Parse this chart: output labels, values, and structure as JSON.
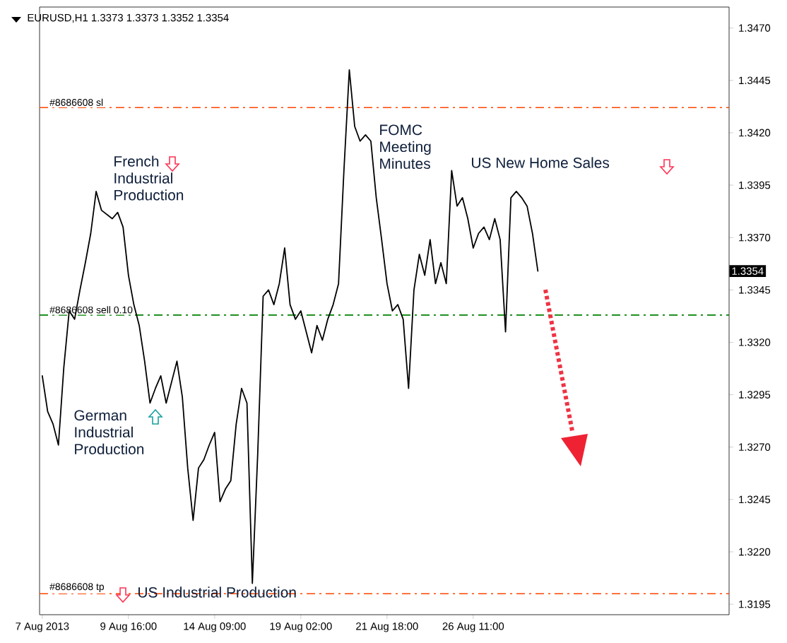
{
  "chart_data": {
    "type": "line",
    "title": "EURUSD,H1  1.3373 1.3373 1.3352 1.3354",
    "categories": [
      "7 Aug 2013",
      null,
      null,
      null,
      null,
      null,
      null,
      null,
      null,
      null,
      null,
      null,
      null,
      null,
      null,
      null,
      "9 Aug 16:00",
      null,
      null,
      null,
      null,
      null,
      null,
      null,
      null,
      null,
      null,
      null,
      null,
      null,
      null,
      null,
      "14 Aug 09:00",
      null,
      null,
      null,
      null,
      null,
      null,
      null,
      null,
      null,
      null,
      null,
      null,
      null,
      null,
      null,
      "19 Aug 02:00",
      null,
      null,
      null,
      null,
      null,
      null,
      null,
      null,
      null,
      null,
      null,
      null,
      null,
      null,
      null,
      "21 Aug 18:00",
      null,
      null,
      null,
      null,
      null,
      null,
      null,
      null,
      null,
      null,
      null,
      null,
      null,
      null,
      null,
      "26 Aug 11:00",
      null,
      null,
      null,
      null,
      null,
      null,
      null,
      null,
      null,
      null,
      null,
      null,
      null,
      null,
      null,
      null,
      null,
      null,
      null,
      null,
      null,
      null,
      null,
      null,
      null,
      null,
      null,
      null,
      null,
      null,
      null,
      null,
      null,
      null,
      null,
      null,
      null,
      null,
      null,
      null,
      null,
      null,
      null,
      null,
      null,
      null,
      null
    ],
    "series": [
      {
        "color": "#000000",
        "values": [
          1.3304,
          1.3287,
          1.3281,
          1.3271,
          1.3308,
          1.3335,
          1.3331,
          1.3345,
          1.3358,
          1.3372,
          1.3392,
          1.3383,
          1.3381,
          1.3379,
          1.3382,
          1.3375,
          1.3352,
          1.3338,
          1.3328,
          1.3311,
          1.3291,
          1.3298,
          1.3304,
          1.3291,
          1.3301,
          1.3311,
          1.3294,
          1.326,
          1.3235,
          1.326,
          1.3264,
          1.3271,
          1.3277,
          1.3244,
          1.325,
          1.3254,
          1.3281,
          1.3298,
          1.3291,
          1.3205,
          1.3267,
          1.3342,
          1.3345,
          1.3338,
          1.3348,
          1.3365,
          1.3338,
          1.3331,
          1.3335,
          1.3325,
          1.3315,
          1.3328,
          1.3321,
          1.3331,
          1.3338,
          1.3348,
          1.3402,
          1.345,
          1.3423,
          1.3416,
          1.3419,
          1.3416,
          1.3389,
          1.3369,
          1.3348,
          1.3335,
          1.3338,
          1.3331,
          1.3298,
          1.3345,
          1.3362,
          1.3352,
          1.3369,
          1.3348,
          1.3358,
          1.3348,
          1.3402,
          1.3385,
          1.3389,
          1.3379,
          1.3365,
          1.3372,
          1.3375,
          1.3369,
          1.3379,
          1.3369,
          1.3325,
          1.3389,
          1.3392,
          1.3389,
          1.3385,
          1.3372,
          1.3354,
          null,
          null,
          null,
          null,
          null,
          null,
          null,
          null,
          null,
          null,
          null,
          null,
          null,
          null,
          null,
          null,
          null,
          null,
          null,
          null,
          null,
          null,
          null,
          null,
          null,
          null,
          null,
          null,
          null,
          null,
          null,
          null,
          null,
          null,
          null
        ]
      }
    ],
    "ylim": [
      1.319,
      1.348
    ],
    "yticks": [
      1.3195,
      {
        "value": 1.322,
        "label": "1.3220"
      },
      1.3245,
      {
        "value": 1.327,
        "label": "1.3270"
      },
      1.3295,
      {
        "value": 1.332,
        "label": "1.3320"
      },
      1.3345,
      {
        "value": 1.337,
        "label": "1.3370"
      },
      1.3395,
      {
        "value": 1.342,
        "label": "1.3420"
      },
      1.3445,
      {
        "value": 1.347,
        "label": "1.3470"
      }
    ],
    "ref_lines": [
      {
        "axis": "y",
        "value": 1.3432,
        "label": "#8686608 sl",
        "color": "#ff4500",
        "line_style": "dashed"
      },
      {
        "axis": "y",
        "value": 1.3333,
        "label": "#8686608 sell 0.10",
        "color": "#008000",
        "line_style": "dashed"
      },
      {
        "axis": "y",
        "value": 1.32,
        "label": "#8686608 tp",
        "color": "#ff4500",
        "line_style": "dashed"
      }
    ],
    "annotations": [
      "French Industrial Production",
      "German Industrial Production",
      "FOMC Meeting Minutes",
      "US New Home Sales",
      "US Industrial Production",
      "1.3354"
    ],
    "marker": "none",
    "line_style": "solid"
  }
}
